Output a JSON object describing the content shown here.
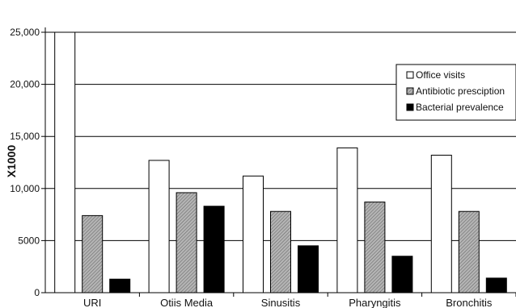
{
  "chart_data": {
    "type": "bar",
    "ylabel": "X1000",
    "xlabel": "",
    "ylim": [
      0,
      25000
    ],
    "yticks": [
      0,
      5000,
      10000,
      15000,
      20000,
      25000
    ],
    "ytick_labels": [
      "0",
      "5000",
      "10,000",
      "15,000",
      "20,000",
      "25,000"
    ],
    "grid": true,
    "legend_position": "top-right",
    "categories": [
      "URI",
      "Otiis Media",
      "Sinusitis",
      "Pharyngitis",
      "Bronchitis"
    ],
    "series": [
      {
        "name": "Office visits",
        "color": "#ffffff",
        "pattern": "plain",
        "values": [
          25000,
          12700,
          11200,
          13900,
          13200
        ]
      },
      {
        "name": "Antibiotic presciption",
        "color": "#9a9a9a",
        "pattern": "hatch",
        "values": [
          7400,
          9600,
          7800,
          8700,
          7800
        ]
      },
      {
        "name": "Bacterial prevalence",
        "color": "#000000",
        "pattern": "solid",
        "values": [
          1300,
          8300,
          4500,
          3500,
          1400
        ]
      }
    ]
  }
}
